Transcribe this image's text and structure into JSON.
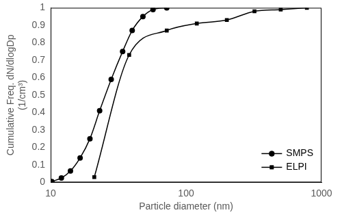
{
  "chart_data": {
    "type": "line",
    "x_label": "Particle diameter (nm)",
    "y_label": [
      "Cumulative Freq. dN/dlogDp",
      "(1/cm³)"
    ],
    "log": "x",
    "grid": false,
    "legend": "lower right",
    "xlim": [
      10,
      1000
    ],
    "xticks": [
      10,
      100,
      1000
    ],
    "ylim": [
      0,
      1
    ],
    "yticks": [
      0,
      0.1,
      0.2,
      0.3,
      0.4,
      0.5,
      0.6,
      0.7,
      0.8,
      0.9,
      1
    ],
    "series": [
      {
        "name": "SMPS",
        "color": "#000000",
        "marker": "circle",
        "line_style": "solid",
        "x": [
          10.2,
          12,
          14,
          16.5,
          19.5,
          23,
          28,
          34,
          40,
          48,
          57,
          72
        ],
        "values": [
          0.005,
          0.025,
          0.065,
          0.14,
          0.25,
          0.41,
          0.59,
          0.75,
          0.87,
          0.95,
          0.99,
          1.0
        ]
      },
      {
        "name": "ELPI",
        "color": "#000000",
        "marker": "square",
        "line_style": "solid",
        "x": [
          21,
          38,
          72,
          120,
          200,
          320,
          500,
          780
        ],
        "values": [
          0.03,
          0.73,
          0.87,
          0.91,
          0.93,
          0.98,
          0.99,
          1.0
        ]
      }
    ]
  }
}
